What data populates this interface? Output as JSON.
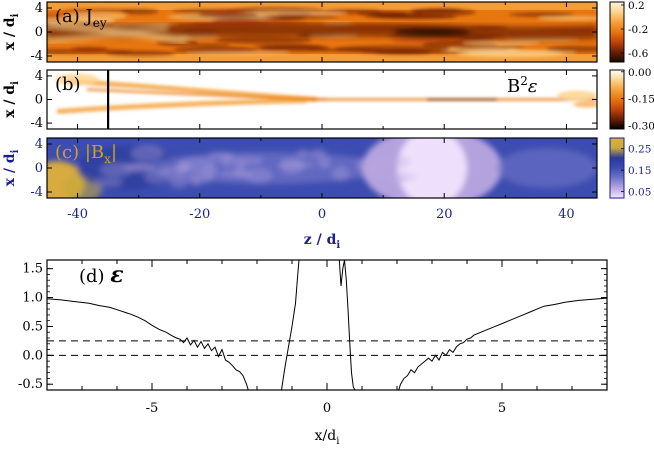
{
  "chart_data": [
    {
      "id": "a",
      "type": "heatmap",
      "panel_label": "(a)",
      "quantity_label": "J",
      "quantity_sub": "ey",
      "ylabel": "x",
      "ylabel_den": "d",
      "ylabel_den_sub": "i",
      "xlim": [
        -45,
        45
      ],
      "ylim": [
        -5,
        5
      ],
      "yticks": [
        "4",
        "0",
        "-4"
      ],
      "ytick_values": [
        4,
        0,
        -4
      ],
      "colorbar_ticks": [
        "0.2",
        "-0.2",
        "-0.6"
      ],
      "colorbar_values": [
        0.2,
        -0.2,
        -0.6
      ],
      "colorbar_range": [
        -0.75,
        0.25
      ],
      "colors": [
        "#1a0a04",
        "#6b1e05",
        "#c0440c",
        "#e8760f",
        "#f5a23c",
        "#fbd58f",
        "#fff5e0"
      ]
    },
    {
      "id": "b",
      "type": "heatmap",
      "panel_label": "(b)",
      "quantity_label": "B",
      "quantity_sup": "2",
      "quantity_symbol": "ε",
      "ylabel": "x",
      "ylabel_den": "d",
      "ylabel_den_sub": "i",
      "xlim": [
        -45,
        45
      ],
      "ylim": [
        -5,
        5
      ],
      "yticks": [
        "4",
        "0",
        "-4"
      ],
      "ytick_values": [
        4,
        0,
        -4
      ],
      "colorbar_ticks": [
        "0.00",
        "-0.15",
        "-0.30"
      ],
      "colorbar_values": [
        0.0,
        -0.15,
        -0.3
      ],
      "colorbar_range": [
        -0.32,
        0.01
      ],
      "marker_line_z": -35,
      "colors": [
        "#000000",
        "#6b1e05",
        "#c0440c",
        "#e8760f",
        "#f5a23c",
        "#fbd58f",
        "#ffffff"
      ]
    },
    {
      "id": "c",
      "type": "heatmap",
      "panel_label": "(c)",
      "quantity_label": "|B",
      "quantity_sub": "x",
      "quantity_close": "|",
      "ylabel": "x",
      "ylabel_den": "d",
      "ylabel_den_sub": "i",
      "xlabel": "z",
      "xlabel_den": "d",
      "xlabel_den_sub": "i",
      "xlim": [
        -45,
        45
      ],
      "ylim": [
        -5,
        5
      ],
      "yticks": [
        "4",
        "0",
        "-4"
      ],
      "ytick_values": [
        4,
        0,
        -4
      ],
      "xticks": [
        "-40",
        "-20",
        "0",
        "20",
        "40"
      ],
      "xtick_values": [
        -40,
        -20,
        0,
        20,
        40
      ],
      "colorbar_ticks": [
        "0.25",
        "0.15",
        "0.05"
      ],
      "colorbar_values": [
        0.25,
        0.15,
        0.05
      ],
      "colorbar_range": [
        0.02,
        0.3
      ],
      "colors": [
        "#f5e6ff",
        "#b9a6e0",
        "#6f74c8",
        "#3c4cb0",
        "#2a3a9a",
        "#c5a93a",
        "#e0b03a"
      ],
      "accent": "#1a1f8c",
      "label_color": "#c9a227"
    },
    {
      "id": "d",
      "type": "line",
      "panel_label": "(d)",
      "quantity_symbol": "ε",
      "xlabel": "x",
      "xlabel_den": "d",
      "xlabel_den_sub": "i",
      "xlim": [
        -8,
        8
      ],
      "ylim": [
        -0.6,
        1.65
      ],
      "xticks": [
        "-5",
        "0",
        "5"
      ],
      "xtick_values": [
        -5,
        0,
        5
      ],
      "yticks": [
        "1.5",
        "1.0",
        "0.5",
        "0.0",
        "-0.5"
      ],
      "ytick_values": [
        1.5,
        1.0,
        0.5,
        0.0,
        -0.5
      ],
      "hlines_dashed": [
        0.25,
        0.0
      ],
      "series": [
        {
          "x": [
            -8.0,
            -7.6,
            -7.2,
            -6.8,
            -6.5,
            -6.2,
            -6.0,
            -5.8,
            -5.6,
            -5.4,
            -5.2,
            -5.0,
            -4.8,
            -4.6,
            -4.4,
            -4.3,
            -4.2,
            -4.1,
            -4.0,
            -3.9,
            -3.8,
            -3.7,
            -3.6,
            -3.5,
            -3.4,
            -3.3,
            -3.2,
            -3.1,
            -3.0,
            -2.9,
            -2.8,
            -2.7,
            -2.6,
            -2.5,
            -2.4,
            -2.3,
            -2.25,
            -1.3,
            -1.2,
            -1.1,
            -1.0,
            -0.9,
            -0.85,
            -0.8,
            0.35,
            0.4,
            0.45,
            0.5,
            0.55,
            0.6,
            0.65,
            0.7,
            0.75,
            0.8,
            2.05,
            2.1,
            2.2,
            2.3,
            2.4,
            2.5,
            2.6,
            2.7,
            2.8,
            2.9,
            3.0,
            3.1,
            3.2,
            3.3,
            3.4,
            3.5,
            3.6,
            3.7,
            3.8,
            3.9,
            4.0,
            4.1,
            4.2,
            4.4,
            4.6,
            4.8,
            5.0,
            5.2,
            5.4,
            5.6,
            5.8,
            6.0,
            6.2,
            6.5,
            6.8,
            7.2,
            7.6,
            8.0
          ],
          "y": [
            0.98,
            0.96,
            0.93,
            0.9,
            0.86,
            0.83,
            0.79,
            0.75,
            0.71,
            0.66,
            0.6,
            0.52,
            0.45,
            0.4,
            0.33,
            0.3,
            0.28,
            0.22,
            0.3,
            0.18,
            0.26,
            0.14,
            0.24,
            0.12,
            0.2,
            0.08,
            0.14,
            -0.02,
            0.1,
            -0.08,
            -0.12,
            -0.18,
            -0.25,
            -0.28,
            -0.35,
            -0.5,
            -0.6,
            -0.6,
            -0.2,
            0.15,
            0.5,
            0.9,
            1.3,
            1.65,
            1.65,
            1.2,
            1.5,
            1.65,
            1.3,
            0.8,
            0.2,
            -0.3,
            -0.55,
            -0.6,
            -0.6,
            -0.5,
            -0.4,
            -0.35,
            -0.25,
            -0.3,
            -0.2,
            -0.15,
            -0.1,
            -0.05,
            -0.1,
            0.0,
            -0.08,
            0.05,
            0.0,
            0.1,
            0.05,
            0.15,
            0.2,
            0.22,
            0.28,
            0.3,
            0.35,
            0.4,
            0.45,
            0.5,
            0.55,
            0.6,
            0.65,
            0.7,
            0.75,
            0.8,
            0.85,
            0.88,
            0.92,
            0.95,
            0.97,
            0.99
          ]
        }
      ]
    }
  ]
}
